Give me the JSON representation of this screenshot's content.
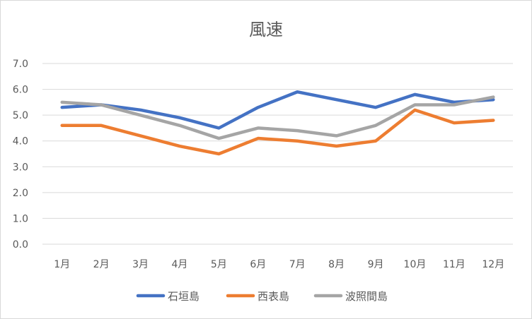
{
  "chart_data": {
    "type": "line",
    "title": "風速",
    "categories": [
      "1月",
      "2月",
      "3月",
      "4月",
      "5月",
      "6月",
      "7月",
      "8月",
      "9月",
      "10月",
      "11月",
      "12月"
    ],
    "ylim": [
      0,
      7
    ],
    "yticks": [
      "0.0",
      "1.0",
      "2.0",
      "3.0",
      "4.0",
      "5.0",
      "6.0",
      "7.0"
    ],
    "grid": true,
    "legend_position": "bottom",
    "series": [
      {
        "name": "石垣島",
        "color": "#4472c4",
        "values": [
          5.3,
          5.4,
          5.2,
          4.9,
          4.5,
          5.3,
          5.9,
          5.6,
          5.3,
          5.8,
          5.5,
          5.6
        ]
      },
      {
        "name": "西表島",
        "color": "#ed7d31",
        "values": [
          4.6,
          4.6,
          4.2,
          3.8,
          3.5,
          4.1,
          4.0,
          3.8,
          4.0,
          5.2,
          4.7,
          4.8
        ]
      },
      {
        "name": "波照間島",
        "color": "#a5a5a5",
        "values": [
          5.5,
          5.4,
          5.0,
          4.6,
          4.1,
          4.5,
          4.4,
          4.2,
          4.6,
          5.4,
          5.4,
          5.7
        ]
      }
    ]
  }
}
